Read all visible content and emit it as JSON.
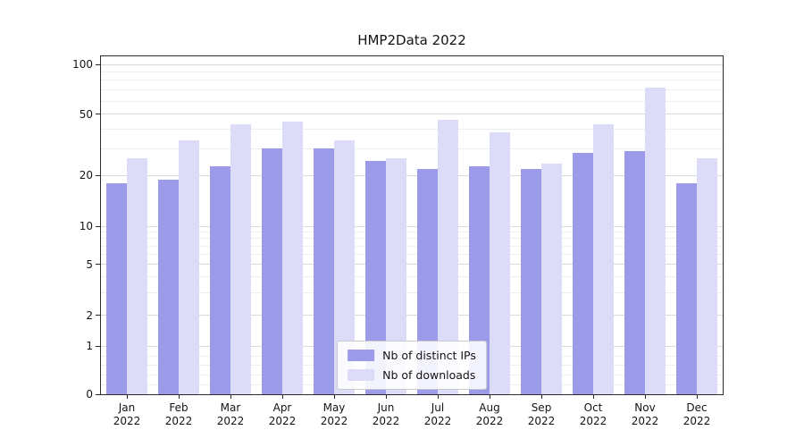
{
  "chart_data": {
    "type": "bar",
    "title": "HMP2Data 2022",
    "categories": [
      "Jan",
      "Feb",
      "Mar",
      "Apr",
      "May",
      "Jun",
      "Jul",
      "Aug",
      "Sep",
      "Oct",
      "Nov",
      "Dec"
    ],
    "year_label": "2022",
    "series": [
      {
        "name": "Nb of distinct IPs",
        "color": "#9b9bea",
        "values": [
          18,
          19,
          23,
          30,
          30,
          25,
          22,
          23,
          22,
          28,
          29,
          18
        ]
      },
      {
        "name": "Nb of downloads",
        "color": "#dcdcf8",
        "values": [
          26,
          34,
          43,
          45,
          34,
          26,
          46,
          38,
          24,
          43,
          72,
          26
        ]
      }
    ],
    "yscale": "symlog",
    "y_ticks": [
      0,
      1,
      2,
      5,
      10,
      20,
      50,
      100
    ],
    "y_minor_ticks": [
      0.2,
      0.4,
      0.6,
      0.8,
      3,
      4,
      6,
      7,
      8,
      9,
      30,
      40,
      60,
      70,
      80,
      90
    ],
    "ylim": [
      0,
      100
    ],
    "xlabel": "",
    "ylabel": "",
    "grid": true,
    "legend_position": "lower center"
  }
}
